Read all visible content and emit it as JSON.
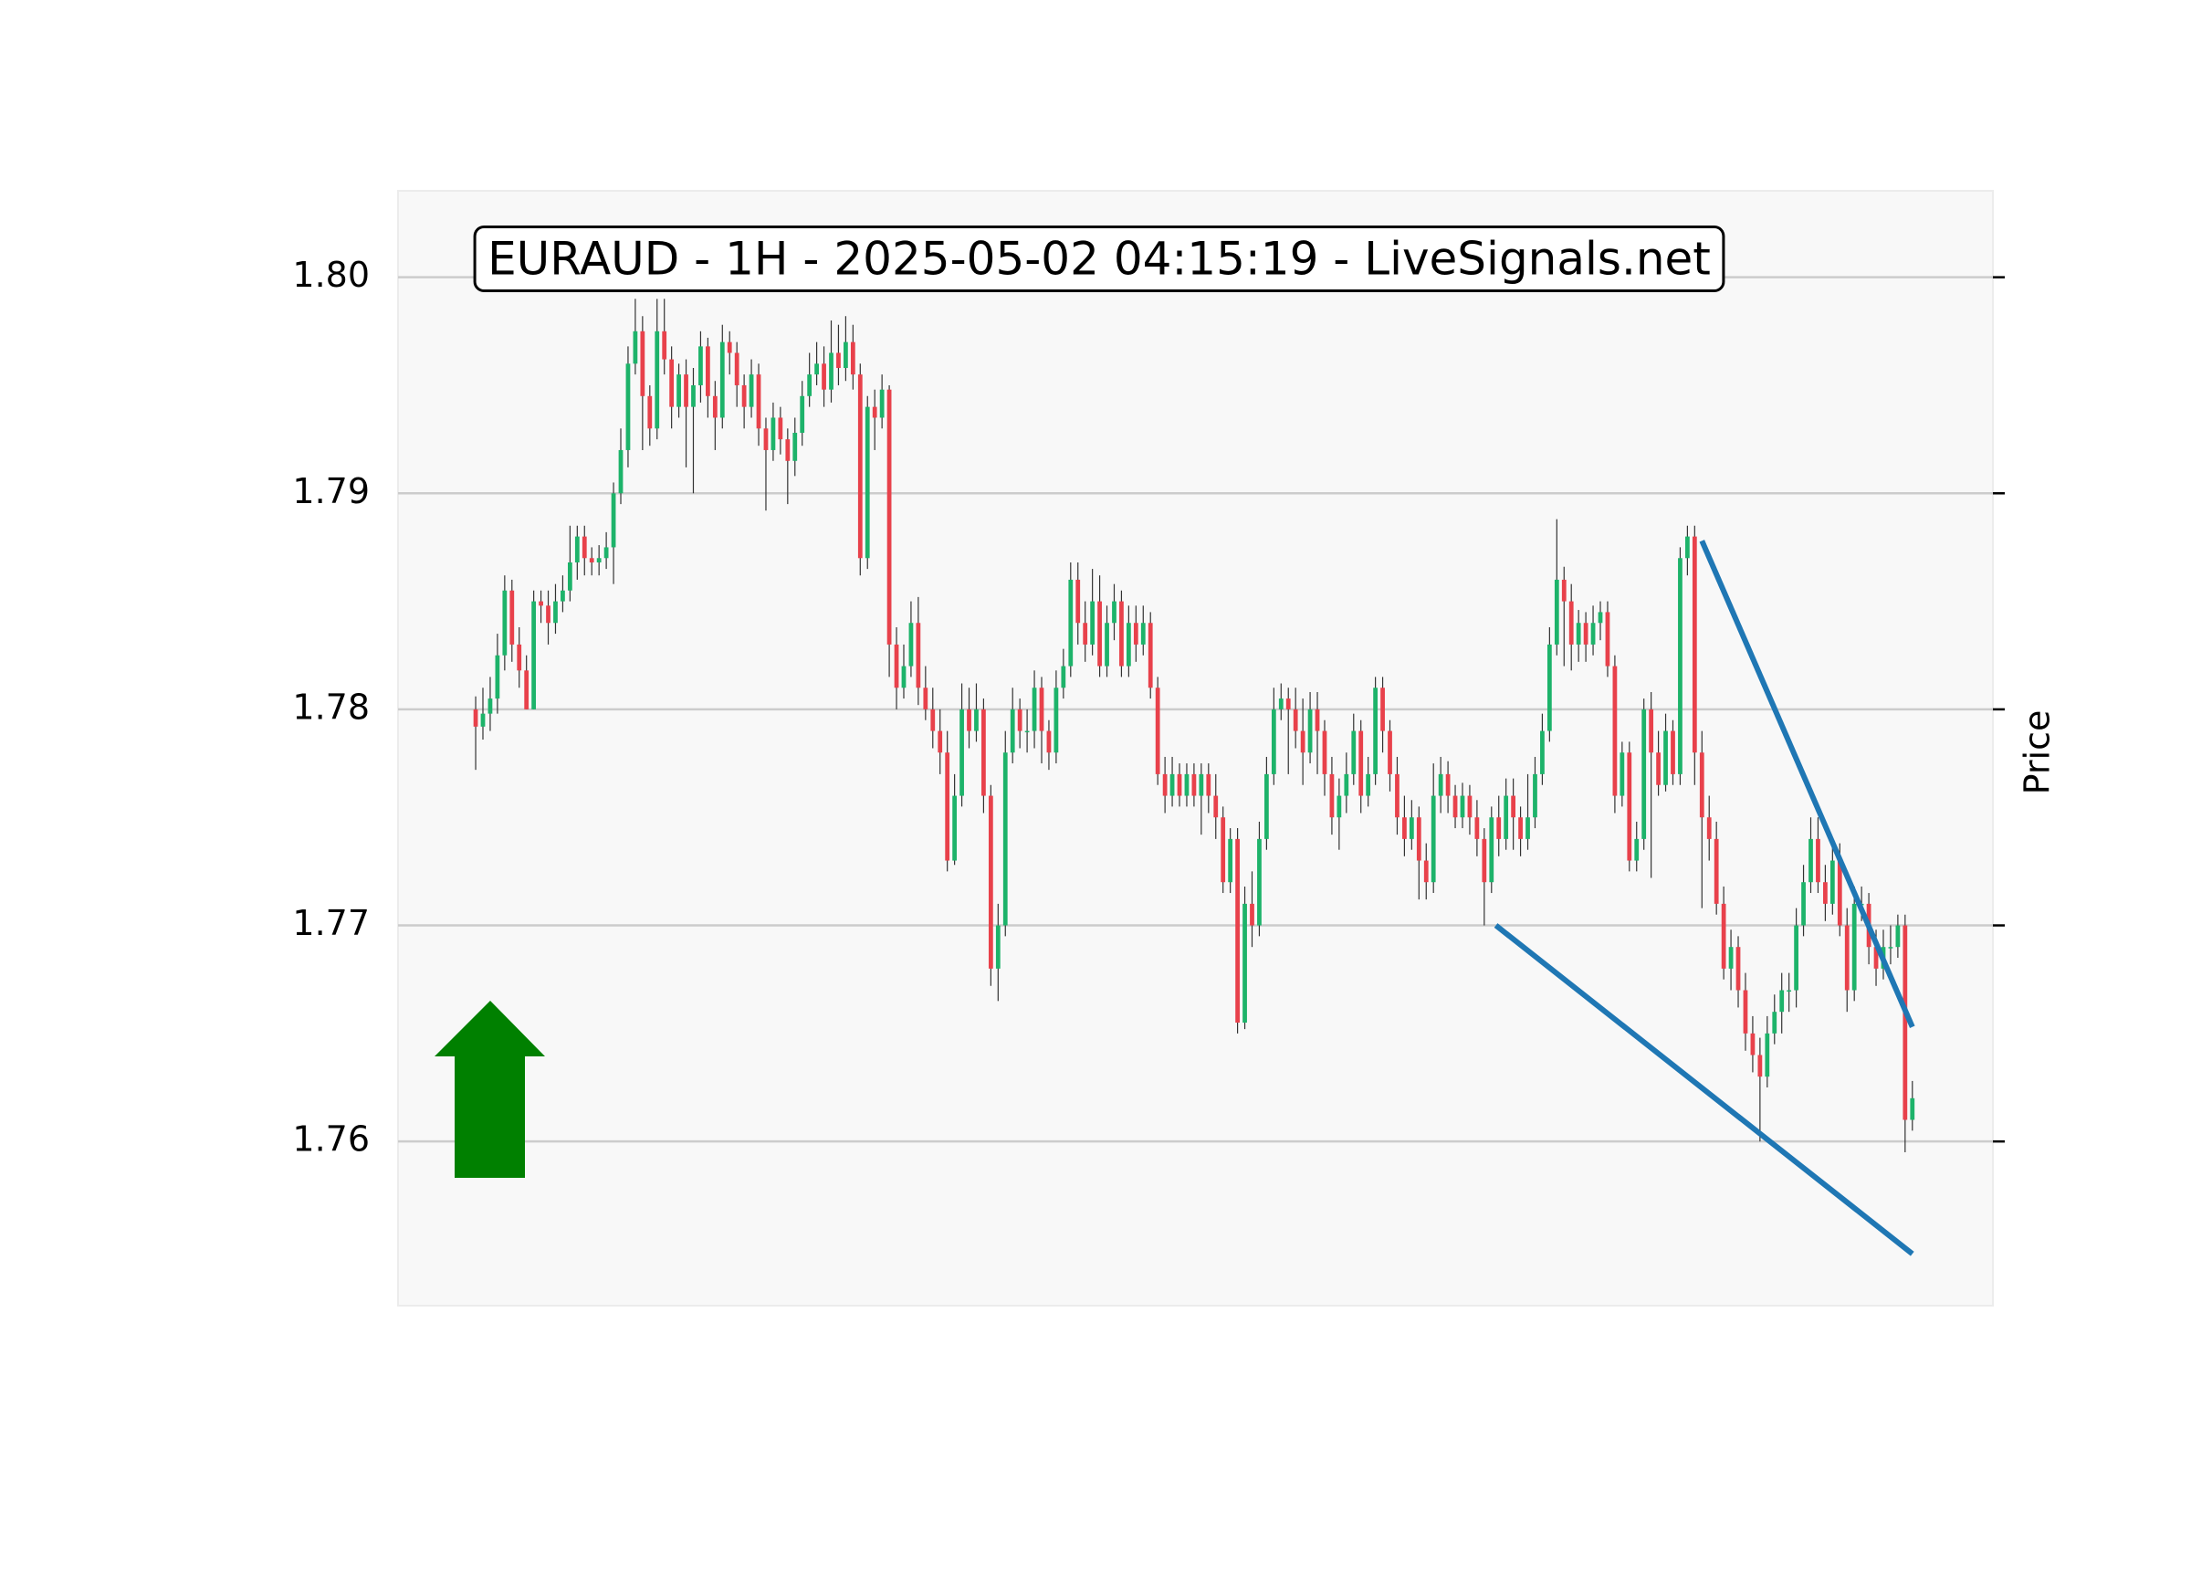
{
  "chart_data": {
    "type": "candlestick",
    "title": "EURAUD - 1H - 2025-05-02 04:15:19 - LiveSignals.net",
    "y_label": "Price",
    "grid": true,
    "up_color": "#1db36a",
    "down_color": "#e8414b",
    "ylim": [
      1.7524,
      1.804
    ],
    "yticks": [
      1.76,
      1.77,
      1.78,
      1.79,
      {
        "value": 1.8,
        "label": "1.80"
      }
    ],
    "xlim": [
      -10.7,
      209.1
    ],
    "ohlc": [
      [
        1.78,
        1.7806,
        1.7772,
        1.7792
      ],
      [
        1.7792,
        1.781,
        1.7786,
        1.7798
      ],
      [
        1.7798,
        1.7815,
        1.779,
        1.7805
      ],
      [
        1.7805,
        1.7835,
        1.7798,
        1.7825
      ],
      [
        1.7825,
        1.7862,
        1.7818,
        1.7855
      ],
      [
        1.7855,
        1.786,
        1.7822,
        1.783
      ],
      [
        1.783,
        1.7838,
        1.781,
        1.7818
      ],
      [
        1.7818,
        1.7825,
        1.78,
        1.78
      ],
      [
        1.78,
        1.7855,
        1.78,
        1.785
      ],
      [
        1.785,
        1.7855,
        1.784,
        1.7848
      ],
      [
        1.7848,
        1.7855,
        1.783,
        1.784
      ],
      [
        1.784,
        1.7858,
        1.7835,
        1.785
      ],
      [
        1.785,
        1.7862,
        1.7845,
        1.7855
      ],
      [
        1.7855,
        1.7885,
        1.785,
        1.7868
      ],
      [
        1.7868,
        1.7885,
        1.786,
        1.788
      ],
      [
        1.788,
        1.7885,
        1.7862,
        1.787
      ],
      [
        1.787,
        1.7875,
        1.7862,
        1.7868
      ],
      [
        1.7868,
        1.7876,
        1.7862,
        1.787
      ],
      [
        1.787,
        1.7882,
        1.7865,
        1.7875
      ],
      [
        1.7875,
        1.7905,
        1.7858,
        1.79
      ],
      [
        1.79,
        1.793,
        1.7895,
        1.792
      ],
      [
        1.792,
        1.7968,
        1.7912,
        1.796
      ],
      [
        1.796,
        1.799,
        1.7955,
        1.7975
      ],
      [
        1.7975,
        1.7982,
        1.792,
        1.7945
      ],
      [
        1.7945,
        1.795,
        1.7922,
        1.793
      ],
      [
        1.793,
        1.799,
        1.7925,
        1.7975
      ],
      [
        1.7975,
        1.799,
        1.7955,
        1.7962
      ],
      [
        1.7962,
        1.7968,
        1.793,
        1.794
      ],
      [
        1.794,
        1.796,
        1.7935,
        1.7955
      ],
      [
        1.7955,
        1.7962,
        1.7912,
        1.794
      ],
      [
        1.794,
        1.7958,
        1.79,
        1.795
      ],
      [
        1.795,
        1.7975,
        1.7942,
        1.7968
      ],
      [
        1.7968,
        1.7972,
        1.7935,
        1.7945
      ],
      [
        1.7945,
        1.7952,
        1.792,
        1.7935
      ],
      [
        1.7935,
        1.7978,
        1.793,
        1.797
      ],
      [
        1.797,
        1.7975,
        1.7955,
        1.7965
      ],
      [
        1.7965,
        1.797,
        1.794,
        1.795
      ],
      [
        1.795,
        1.7955,
        1.793,
        1.794
      ],
      [
        1.794,
        1.7962,
        1.7935,
        1.7955
      ],
      [
        1.7955,
        1.796,
        1.7922,
        1.793
      ],
      [
        1.793,
        1.7935,
        1.7892,
        1.792
      ],
      [
        1.792,
        1.7942,
        1.7915,
        1.7935
      ],
      [
        1.7935,
        1.794,
        1.7918,
        1.7925
      ],
      [
        1.7925,
        1.793,
        1.7895,
        1.7915
      ],
      [
        1.7915,
        1.7935,
        1.7908,
        1.7928
      ],
      [
        1.7928,
        1.7952,
        1.7922,
        1.7945
      ],
      [
        1.7945,
        1.7965,
        1.794,
        1.7955
      ],
      [
        1.7955,
        1.797,
        1.795,
        1.796
      ],
      [
        1.796,
        1.7968,
        1.794,
        1.7948
      ],
      [
        1.7948,
        1.798,
        1.7942,
        1.7965
      ],
      [
        1.7965,
        1.7978,
        1.795,
        1.7958
      ],
      [
        1.7958,
        1.7982,
        1.7952,
        1.797
      ],
      [
        1.797,
        1.7978,
        1.7948,
        1.7955
      ],
      [
        1.7955,
        1.796,
        1.7862,
        1.787
      ],
      [
        1.787,
        1.7945,
        1.7865,
        1.794
      ],
      [
        1.794,
        1.7948,
        1.792,
        1.7935
      ],
      [
        1.7935,
        1.7955,
        1.793,
        1.7948
      ],
      [
        1.7948,
        1.795,
        1.7815,
        1.783
      ],
      [
        1.783,
        1.7838,
        1.78,
        1.781
      ],
      [
        1.781,
        1.783,
        1.7805,
        1.782
      ],
      [
        1.782,
        1.785,
        1.7815,
        1.784
      ],
      [
        1.784,
        1.7852,
        1.7802,
        1.781
      ],
      [
        1.781,
        1.782,
        1.7795,
        1.78
      ],
      [
        1.78,
        1.781,
        1.7782,
        1.779
      ],
      [
        1.779,
        1.78,
        1.777,
        1.778
      ],
      [
        1.778,
        1.779,
        1.7725,
        1.773
      ],
      [
        1.773,
        1.777,
        1.7728,
        1.776
      ],
      [
        1.776,
        1.7812,
        1.7755,
        1.78
      ],
      [
        1.78,
        1.781,
        1.7782,
        1.779
      ],
      [
        1.779,
        1.7812,
        1.7785,
        1.78
      ],
      [
        1.78,
        1.7805,
        1.7752,
        1.776
      ],
      [
        1.776,
        1.7765,
        1.7672,
        1.768
      ],
      [
        1.768,
        1.771,
        1.7665,
        1.77
      ],
      [
        1.77,
        1.779,
        1.7695,
        1.778
      ],
      [
        1.778,
        1.781,
        1.7775,
        1.78
      ],
      [
        1.78,
        1.7805,
        1.7782,
        1.779
      ],
      [
        1.779,
        1.78,
        1.778,
        1.779
      ],
      [
        1.779,
        1.7818,
        1.7782,
        1.781
      ],
      [
        1.781,
        1.7815,
        1.7775,
        1.779
      ],
      [
        1.779,
        1.7795,
        1.7772,
        1.778
      ],
      [
        1.778,
        1.7818,
        1.7775,
        1.781
      ],
      [
        1.781,
        1.7828,
        1.7805,
        1.782
      ],
      [
        1.782,
        1.7868,
        1.7815,
        1.786
      ],
      [
        1.786,
        1.7868,
        1.783,
        1.784
      ],
      [
        1.784,
        1.785,
        1.7822,
        1.783
      ],
      [
        1.783,
        1.7865,
        1.7825,
        1.785
      ],
      [
        1.785,
        1.7862,
        1.7815,
        1.782
      ],
      [
        1.782,
        1.7848,
        1.7815,
        1.784
      ],
      [
        1.784,
        1.7858,
        1.7832,
        1.785
      ],
      [
        1.785,
        1.7855,
        1.7815,
        1.782
      ],
      [
        1.782,
        1.7848,
        1.7815,
        1.784
      ],
      [
        1.784,
        1.7848,
        1.7822,
        1.783
      ],
      [
        1.783,
        1.7848,
        1.7825,
        1.784
      ],
      [
        1.784,
        1.7845,
        1.7805,
        1.781
      ],
      [
        1.781,
        1.7815,
        1.7765,
        1.777
      ],
      [
        1.777,
        1.7778,
        1.7752,
        1.776
      ],
      [
        1.776,
        1.7778,
        1.7755,
        1.777
      ],
      [
        1.777,
        1.7775,
        1.7755,
        1.776
      ],
      [
        1.776,
        1.7775,
        1.7755,
        1.777
      ],
      [
        1.777,
        1.7775,
        1.7755,
        1.776
      ],
      [
        1.776,
        1.7775,
        1.7742,
        1.777
      ],
      [
        1.777,
        1.7775,
        1.7752,
        1.776
      ],
      [
        1.776,
        1.777,
        1.774,
        1.775
      ],
      [
        1.775,
        1.7755,
        1.7715,
        1.772
      ],
      [
        1.772,
        1.7745,
        1.7715,
        1.774
      ],
      [
        1.774,
        1.7745,
        1.765,
        1.7655
      ],
      [
        1.7655,
        1.7718,
        1.7652,
        1.771
      ],
      [
        1.771,
        1.7725,
        1.769,
        1.77
      ],
      [
        1.77,
        1.7748,
        1.7695,
        1.774
      ],
      [
        1.774,
        1.7778,
        1.7735,
        1.777
      ],
      [
        1.777,
        1.781,
        1.7765,
        1.78
      ],
      [
        1.78,
        1.7812,
        1.7795,
        1.7805
      ],
      [
        1.7805,
        1.781,
        1.777,
        1.78
      ],
      [
        1.78,
        1.781,
        1.7782,
        1.779
      ],
      [
        1.779,
        1.7805,
        1.7765,
        1.778
      ],
      [
        1.778,
        1.7808,
        1.7775,
        1.78
      ],
      [
        1.78,
        1.7808,
        1.777,
        1.779
      ],
      [
        1.779,
        1.7795,
        1.776,
        1.777
      ],
      [
        1.777,
        1.7778,
        1.7742,
        1.775
      ],
      [
        1.775,
        1.7768,
        1.7735,
        1.776
      ],
      [
        1.776,
        1.778,
        1.7752,
        1.777
      ],
      [
        1.777,
        1.7798,
        1.7765,
        1.779
      ],
      [
        1.779,
        1.7795,
        1.7752,
        1.776
      ],
      [
        1.776,
        1.7778,
        1.7755,
        1.777
      ],
      [
        1.777,
        1.7815,
        1.7765,
        1.781
      ],
      [
        1.781,
        1.7815,
        1.778,
        1.779
      ],
      [
        1.779,
        1.7795,
        1.7762,
        1.777
      ],
      [
        1.777,
        1.7778,
        1.7742,
        1.775
      ],
      [
        1.775,
        1.776,
        1.7732,
        1.774
      ],
      [
        1.774,
        1.7758,
        1.7735,
        1.775
      ],
      [
        1.775,
        1.7755,
        1.7712,
        1.773
      ],
      [
        1.773,
        1.7738,
        1.7712,
        1.772
      ],
      [
        1.772,
        1.7775,
        1.7715,
        1.776
      ],
      [
        1.776,
        1.7778,
        1.7752,
        1.777
      ],
      [
        1.777,
        1.7776,
        1.7752,
        1.776
      ],
      [
        1.776,
        1.7765,
        1.7745,
        1.775
      ],
      [
        1.775,
        1.7766,
        1.7745,
        1.776
      ],
      [
        1.776,
        1.7765,
        1.7742,
        1.775
      ],
      [
        1.775,
        1.7758,
        1.7732,
        1.774
      ],
      [
        1.774,
        1.7745,
        1.77,
        1.772
      ],
      [
        1.772,
        1.7755,
        1.7715,
        1.775
      ],
      [
        1.775,
        1.776,
        1.7732,
        1.774
      ],
      [
        1.774,
        1.7768,
        1.7735,
        1.776
      ],
      [
        1.776,
        1.7768,
        1.7735,
        1.775
      ],
      [
        1.775,
        1.7755,
        1.7732,
        1.774
      ],
      [
        1.774,
        1.777,
        1.7735,
        1.775
      ],
      [
        1.775,
        1.7778,
        1.7745,
        1.777
      ],
      [
        1.777,
        1.7798,
        1.7765,
        1.779
      ],
      [
        1.779,
        1.7838,
        1.7785,
        1.783
      ],
      [
        1.783,
        1.7888,
        1.7825,
        1.786
      ],
      [
        1.786,
        1.7866,
        1.782,
        1.785
      ],
      [
        1.785,
        1.7858,
        1.7818,
        1.783
      ],
      [
        1.783,
        1.7846,
        1.7822,
        1.784
      ],
      [
        1.784,
        1.7845,
        1.7822,
        1.783
      ],
      [
        1.783,
        1.7848,
        1.7825,
        1.784
      ],
      [
        1.784,
        1.785,
        1.7832,
        1.7845
      ],
      [
        1.7845,
        1.785,
        1.7815,
        1.782
      ],
      [
        1.782,
        1.7825,
        1.7752,
        1.776
      ],
      [
        1.776,
        1.7785,
        1.7755,
        1.778
      ],
      [
        1.778,
        1.7785,
        1.7725,
        1.773
      ],
      [
        1.773,
        1.7748,
        1.7725,
        1.774
      ],
      [
        1.774,
        1.7805,
        1.7735,
        1.78
      ],
      [
        1.78,
        1.7808,
        1.7722,
        1.778
      ],
      [
        1.778,
        1.779,
        1.776,
        1.7765
      ],
      [
        1.7765,
        1.7798,
        1.7762,
        1.779
      ],
      [
        1.779,
        1.7795,
        1.7765,
        1.777
      ],
      [
        1.777,
        1.7875,
        1.7765,
        1.787
      ],
      [
        1.787,
        1.7885,
        1.7862,
        1.788
      ],
      [
        1.788,
        1.7885,
        1.7765,
        1.778
      ],
      [
        1.778,
        1.779,
        1.7708,
        1.775
      ],
      [
        1.775,
        1.776,
        1.773,
        1.774
      ],
      [
        1.774,
        1.7748,
        1.7705,
        1.771
      ],
      [
        1.771,
        1.7718,
        1.7675,
        1.768
      ],
      [
        1.768,
        1.7698,
        1.767,
        1.769
      ],
      [
        1.769,
        1.7695,
        1.7662,
        1.767
      ],
      [
        1.767,
        1.7678,
        1.7642,
        1.765
      ],
      [
        1.765,
        1.7658,
        1.7632,
        1.764
      ],
      [
        1.764,
        1.7648,
        1.76,
        1.763
      ],
      [
        1.763,
        1.7658,
        1.7625,
        1.765
      ],
      [
        1.765,
        1.7668,
        1.7645,
        1.766
      ],
      [
        1.766,
        1.7678,
        1.765,
        1.767
      ],
      [
        1.767,
        1.7678,
        1.766,
        1.767
      ],
      [
        1.767,
        1.7708,
        1.7662,
        1.77
      ],
      [
        1.77,
        1.7728,
        1.7695,
        1.772
      ],
      [
        1.772,
        1.775,
        1.7715,
        1.774
      ],
      [
        1.774,
        1.775,
        1.7715,
        1.772
      ],
      [
        1.772,
        1.7728,
        1.7702,
        1.771
      ],
      [
        1.771,
        1.7738,
        1.7705,
        1.773
      ],
      [
        1.773,
        1.7738,
        1.7695,
        1.77
      ],
      [
        1.77,
        1.7708,
        1.766,
        1.767
      ],
      [
        1.767,
        1.7718,
        1.7665,
        1.771
      ],
      [
        1.771,
        1.7718,
        1.7702,
        1.771
      ],
      [
        1.771,
        1.7715,
        1.7682,
        1.769
      ],
      [
        1.769,
        1.7698,
        1.7672,
        1.768
      ],
      [
        1.768,
        1.7698,
        1.7675,
        1.769
      ],
      [
        1.769,
        1.77,
        1.7682,
        1.769
      ],
      [
        1.769,
        1.7705,
        1.7685,
        1.77
      ],
      [
        1.77,
        1.7705,
        1.7595,
        1.761
      ],
      [
        1.761,
        1.7628,
        1.7605,
        1.762
      ]
    ],
    "lines": [
      {
        "color": "#1f77b4",
        "x": [
          140.6,
          198
        ],
        "y": [
          1.77,
          1.7548
        ]
      },
      {
        "color": "#1f77b4",
        "x": [
          169,
          198
        ],
        "y": [
          1.7878,
          1.7653
        ]
      }
    ]
  }
}
